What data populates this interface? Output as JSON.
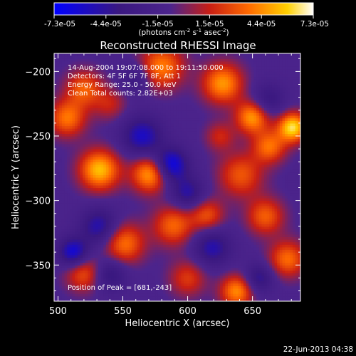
{
  "chart_data": {
    "type": "heatmap",
    "title": "Reconstructed RHESSI Image",
    "xlabel": "Heliocentric X (arcsec)",
    "ylabel": "Heliocentric Y (arcsec)",
    "xlim": [
      497,
      687
    ],
    "ylim": [
      -378,
      -186
    ],
    "xticks": [
      500,
      550,
      600,
      650
    ],
    "yticks": [
      -200,
      -250,
      -300,
      -350
    ],
    "colorbar": {
      "ticks": [
        "-7.3e-05",
        "-4.4e-05",
        "-1.5e-05",
        "1.5e-05",
        "4.4e-05",
        "7.3e-05"
      ],
      "range": [
        -7.3e-05,
        7.3e-05
      ],
      "colormap": "blue-purple-red-orange-yellow-white",
      "unit_base": "(photons cm",
      "unit_sup1": "-2",
      "unit_mid": " s",
      "unit_sup2": "-1",
      "unit_end": " asec",
      "unit_sup3": "-2",
      "unit_close": ")"
    },
    "annotations": [
      "14-Aug-2004 19:07:08.000 to 19:11:50.000",
      "Detectors: 4F 5F 6F 7F 8F, Att 1",
      "Energy Range: 25.0 - 50.0 keV",
      "Clean    Total counts: 2.82E+03"
    ],
    "peak_label": "Position of Peak = [681,-243]",
    "peak": [
      681,
      -243
    ],
    "sources": [
      {
        "x": 681,
        "y": -243,
        "v": 7.3e-05,
        "s": 8
      },
      {
        "x": 663,
        "y": -258,
        "v": 4.6e-05,
        "s": 9
      },
      {
        "x": 650,
        "y": -235,
        "v": 5.8e-05,
        "s": 9
      },
      {
        "x": 627,
        "y": -209,
        "v": 5.6e-05,
        "s": 11
      },
      {
        "x": 580,
        "y": -196,
        "v": 5e-05,
        "s": 12
      },
      {
        "x": 520,
        "y": -213,
        "v": 4.2e-05,
        "s": 10
      },
      {
        "x": 507,
        "y": -236,
        "v": 4.8e-05,
        "s": 10
      },
      {
        "x": 532,
        "y": -276,
        "v": 6.5e-05,
        "s": 11
      },
      {
        "x": 571,
        "y": -279,
        "v": 6e-05,
        "s": 10
      },
      {
        "x": 641,
        "y": -280,
        "v": 4e-05,
        "s": 12
      },
      {
        "x": 551,
        "y": -333,
        "v": 4.8e-05,
        "s": 11
      },
      {
        "x": 589,
        "y": -319,
        "v": 4.4e-05,
        "s": 11
      },
      {
        "x": 615,
        "y": -311,
        "v": 3.8e-05,
        "s": 9
      },
      {
        "x": 660,
        "y": -312,
        "v": 4.2e-05,
        "s": 10
      },
      {
        "x": 677,
        "y": -345,
        "v": 4.6e-05,
        "s": 10
      },
      {
        "x": 520,
        "y": -356,
        "v": 4e-05,
        "s": 10
      },
      {
        "x": 638,
        "y": -370,
        "v": 5.4e-05,
        "s": 9
      },
      {
        "x": 600,
        "y": -360,
        "v": 3.2e-05,
        "s": 10
      },
      {
        "x": 625,
        "y": -250,
        "v": 2.6e-05,
        "s": 8
      },
      {
        "x": 540,
        "y": -225,
        "v": 2.4e-05,
        "s": 9
      },
      {
        "x": 565,
        "y": -250,
        "v": -4.6e-05,
        "s": 11
      },
      {
        "x": 587,
        "y": -272,
        "v": -6e-05,
        "s": 9
      },
      {
        "x": 532,
        "y": -320,
        "v": -4.2e-05,
        "s": 10
      },
      {
        "x": 512,
        "y": -340,
        "v": -5.5e-05,
        "s": 8
      },
      {
        "x": 600,
        "y": -294,
        "v": -3.8e-05,
        "s": 9
      },
      {
        "x": 619,
        "y": -336,
        "v": -4e-05,
        "s": 10
      },
      {
        "x": 662,
        "y": -222,
        "v": -3e-05,
        "s": 9
      },
      {
        "x": 540,
        "y": -357,
        "v": -3.4e-05,
        "s": 9
      },
      {
        "x": 560,
        "y": -205,
        "v": -2.8e-05,
        "s": 8
      },
      {
        "x": 655,
        "y": -360,
        "v": -3.6e-05,
        "s": 8
      }
    ]
  },
  "footer": {
    "timestamp": "22-Jun-2013 04:38"
  }
}
